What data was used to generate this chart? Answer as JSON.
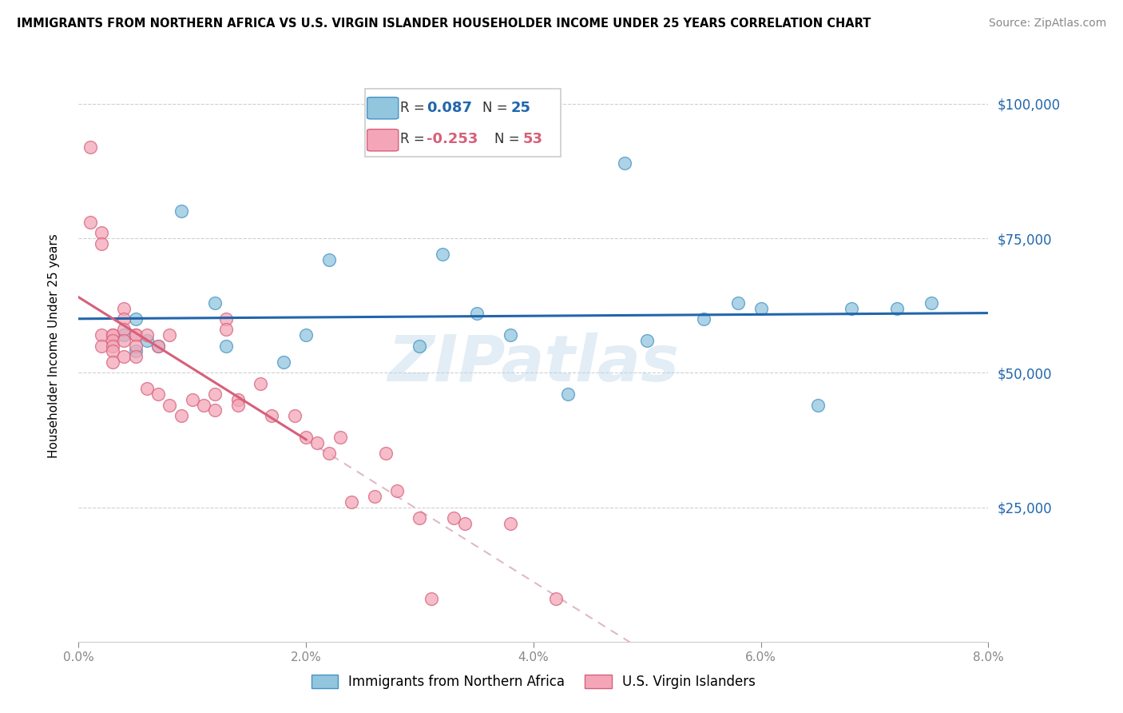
{
  "title": "IMMIGRANTS FROM NORTHERN AFRICA VS U.S. VIRGIN ISLANDER HOUSEHOLDER INCOME UNDER 25 YEARS CORRELATION CHART",
  "source": "Source: ZipAtlas.com",
  "ylabel": "Householder Income Under 25 years",
  "xlabel_ticks": [
    "0.0%",
    "2.0%",
    "4.0%",
    "6.0%",
    "8.0%"
  ],
  "xlabel_vals": [
    0.0,
    0.02,
    0.04,
    0.06,
    0.08
  ],
  "right_ytick_labels": [
    "$100,000",
    "$75,000",
    "$50,000",
    "$25,000"
  ],
  "right_ytick_vals": [
    100000,
    75000,
    50000,
    25000
  ],
  "xmin": 0.0,
  "xmax": 0.08,
  "ymin": 0,
  "ymax": 110000,
  "blue_R": 0.087,
  "blue_N": 25,
  "pink_R": -0.253,
  "pink_N": 53,
  "blue_color": "#92c5de",
  "pink_color": "#f4a6b8",
  "blue_edge_color": "#4393c3",
  "pink_edge_color": "#d6607a",
  "blue_line_color": "#2166ac",
  "pink_line_color": "#d6607a",
  "pink_dash_color": "#e0b8c8",
  "watermark": "ZIPatlas",
  "blue_label": "Immigrants from Northern Africa",
  "pink_label": "U.S. Virgin Islanders",
  "blue_points_x": [
    0.004,
    0.005,
    0.005,
    0.006,
    0.007,
    0.009,
    0.012,
    0.013,
    0.018,
    0.02,
    0.022,
    0.03,
    0.032,
    0.035,
    0.038,
    0.043,
    0.048,
    0.05,
    0.055,
    0.058,
    0.06,
    0.065,
    0.068,
    0.072,
    0.075
  ],
  "blue_points_y": [
    57000,
    54000,
    60000,
    56000,
    55000,
    80000,
    63000,
    55000,
    52000,
    57000,
    71000,
    55000,
    72000,
    61000,
    57000,
    46000,
    89000,
    56000,
    60000,
    63000,
    62000,
    44000,
    62000,
    62000,
    63000
  ],
  "pink_points_x": [
    0.001,
    0.001,
    0.002,
    0.002,
    0.002,
    0.002,
    0.003,
    0.003,
    0.003,
    0.003,
    0.003,
    0.003,
    0.004,
    0.004,
    0.004,
    0.004,
    0.004,
    0.005,
    0.005,
    0.005,
    0.005,
    0.006,
    0.006,
    0.007,
    0.007,
    0.008,
    0.008,
    0.009,
    0.01,
    0.011,
    0.012,
    0.012,
    0.013,
    0.013,
    0.014,
    0.014,
    0.016,
    0.017,
    0.019,
    0.02,
    0.021,
    0.022,
    0.023,
    0.024,
    0.026,
    0.027,
    0.028,
    0.03,
    0.031,
    0.033,
    0.034,
    0.038,
    0.042
  ],
  "pink_points_y": [
    92000,
    78000,
    76000,
    74000,
    57000,
    55000,
    57000,
    57000,
    56000,
    55000,
    54000,
    52000,
    62000,
    60000,
    58000,
    56000,
    53000,
    57000,
    57000,
    55000,
    53000,
    57000,
    47000,
    55000,
    46000,
    57000,
    44000,
    42000,
    45000,
    44000,
    46000,
    43000,
    60000,
    58000,
    45000,
    44000,
    48000,
    42000,
    42000,
    38000,
    37000,
    35000,
    38000,
    26000,
    27000,
    35000,
    28000,
    23000,
    8000,
    23000,
    22000,
    22000,
    8000
  ]
}
